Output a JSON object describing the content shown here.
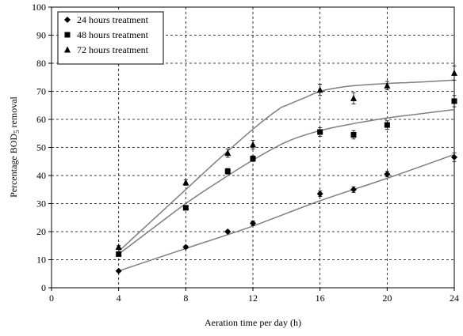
{
  "chart_data": {
    "type": "scatter",
    "title": "",
    "xlabel": "Aeration time per day (h)",
    "ylabel_parts": [
      "Percentage BOD",
      "5",
      " removal"
    ],
    "xlim": [
      0,
      24
    ],
    "ylim": [
      0,
      100
    ],
    "xticks": [
      0,
      4,
      8,
      12,
      16,
      20,
      24
    ],
    "yticks": [
      0,
      10,
      20,
      30,
      40,
      50,
      60,
      70,
      80,
      90,
      100
    ],
    "grid": true,
    "legend_position": "top-left",
    "series": [
      {
        "name": "24 hours treatment",
        "marker": "diamond",
        "x": [
          4,
          8,
          10.5,
          12,
          16,
          18,
          20,
          24
        ],
        "y": [
          6,
          14.5,
          20,
          23,
          33.5,
          35,
          40.5,
          46.5
        ],
        "err": [
          0.3,
          0.5,
          0.5,
          0.8,
          1.0,
          1.0,
          1.0,
          1.5
        ],
        "fit_x": [
          4,
          8,
          12,
          16,
          20,
          24
        ],
        "fit_y": [
          6,
          14,
          22,
          31,
          39,
          47.5
        ]
      },
      {
        "name": "48 hours treatment",
        "marker": "square",
        "x": [
          4,
          8,
          10.5,
          12,
          16,
          18,
          20,
          24
        ],
        "y": [
          12,
          28.5,
          41.5,
          46,
          55.5,
          54.5,
          58,
          66.5
        ],
        "err": [
          0.5,
          0.8,
          1.0,
          1.0,
          1.5,
          1.5,
          1.5,
          2.0
        ],
        "fit_x": [
          4,
          6,
          8,
          10,
          12,
          14,
          16,
          18,
          20,
          22,
          24
        ],
        "fit_y": [
          12,
          21,
          30,
          38,
          45.5,
          52,
          56,
          58.5,
          60.5,
          62,
          63.5
        ]
      },
      {
        "name": "72 hours treatment",
        "marker": "triangle",
        "x": [
          4,
          8,
          10.5,
          12,
          16,
          18,
          20,
          24
        ],
        "y": [
          14.5,
          37.5,
          48,
          51,
          70.5,
          67.5,
          72,
          76.5
        ],
        "err": [
          0.5,
          1.0,
          1.5,
          1.5,
          2.0,
          2.0,
          1.5,
          2.5
        ],
        "fit_x": [
          4,
          6,
          8,
          10,
          12,
          13.5,
          14,
          15,
          16,
          17,
          18,
          20,
          22,
          24
        ],
        "fit_y": [
          13,
          24,
          35,
          46,
          56.5,
          63.5,
          65,
          67.5,
          70,
          71.2,
          72,
          72.8,
          73.3,
          74
        ]
      }
    ]
  }
}
